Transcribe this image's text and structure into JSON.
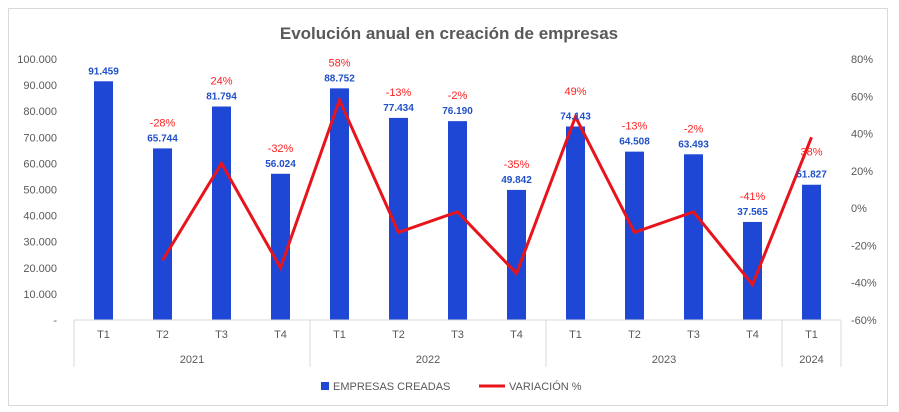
{
  "chart_data": {
    "type": "bar",
    "title": "Evolución anual en creación de empresas",
    "categories": [
      "T1",
      "T2",
      "T3",
      "T4",
      "T1",
      "T2",
      "T3",
      "T4",
      "T1",
      "T2",
      "T3",
      "T4",
      "T1"
    ],
    "groups": [
      {
        "label": "2021",
        "count": 4
      },
      {
        "label": "2022",
        "count": 4
      },
      {
        "label": "2023",
        "count": 4
      },
      {
        "label": "2024",
        "count": 1
      }
    ],
    "series": [
      {
        "name": "EMPRESAS CREADAS",
        "type": "bar",
        "axis": "left",
        "color": "#1f47d6",
        "values": [
          91459,
          65744,
          81794,
          56024,
          88752,
          77434,
          76190,
          49842,
          74143,
          64508,
          63493,
          37565,
          51827
        ],
        "labels": [
          "91.459",
          "65.744",
          "81.794",
          "56.024",
          "88.752",
          "77.434",
          "76.190",
          "49.842",
          "74.143",
          "64.508",
          "63.493",
          "37.565",
          "51.827"
        ]
      },
      {
        "name": "VARIACIÓN %",
        "type": "line",
        "axis": "right",
        "color": "#e8141c",
        "values": [
          null,
          -28,
          24,
          -32,
          58,
          -13,
          -2,
          -35,
          49,
          -13,
          -2,
          -41,
          38
        ],
        "labels": [
          "",
          "-28%",
          "24%",
          "-32%",
          "58%",
          "-13%",
          "-2%",
          "-35%",
          "49%",
          "-13%",
          "-2%",
          "-41%",
          "38%"
        ]
      }
    ],
    "y_left": {
      "min": 0,
      "max": 100000,
      "step": 10000,
      "tick_labels": [
        "-",
        "10.000",
        "20.000",
        "30.000",
        "40.000",
        "50.000",
        "60.000",
        "70.000",
        "80.000",
        "90.000",
        "100.000"
      ]
    },
    "y_right": {
      "min": -60,
      "max": 80,
      "step": 20,
      "tick_labels": [
        "-60%",
        "-40%",
        "-20%",
        "0%",
        "20%",
        "40%",
        "60%",
        "80%"
      ]
    },
    "gridlines": false,
    "legend": {
      "position": "bottom",
      "items": [
        "EMPRESAS CREADAS",
        "VARIACIÓN %"
      ]
    }
  }
}
